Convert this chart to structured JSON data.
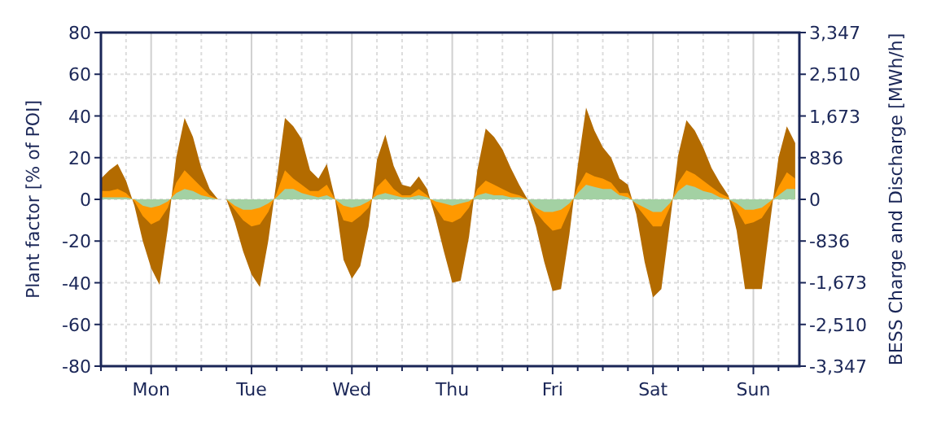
{
  "chart_data": {
    "type": "area",
    "ylabel": "Plant factor [% of POI]",
    "y2label": "BESS Charge and Discharge [MWh/h]",
    "categories": [
      null,
      null,
      null,
      null,
      null,
      null,
      "Mon",
      null,
      null,
      null,
      null,
      null,
      null,
      null,
      null,
      null,
      null,
      null,
      "Tue",
      null,
      null,
      null,
      null,
      null,
      null,
      null,
      null,
      null,
      null,
      null,
      "Wed",
      null,
      null,
      null,
      null,
      null,
      null,
      null,
      null,
      null,
      null,
      null,
      "Thu",
      null,
      null,
      null,
      null,
      null,
      null,
      null,
      null,
      null,
      null,
      null,
      "Fri",
      null,
      null,
      null,
      null,
      null,
      null,
      null,
      null,
      null,
      null,
      null,
      "Sat",
      null,
      null,
      null,
      null,
      null,
      null,
      null,
      null,
      null,
      null,
      null,
      "Sun",
      null,
      null,
      null,
      null,
      null
    ],
    "ylim": [
      -80,
      80
    ],
    "yticks": [
      -80,
      -60,
      -40,
      -20,
      0,
      20,
      40,
      60,
      80
    ],
    "y2lim": [
      -3347,
      3347
    ],
    "y2ticks": [
      {
        "value": -3347,
        "label": "-3,347"
      },
      {
        "value": -2510,
        "label": "-2,510"
      },
      {
        "value": -1673,
        "label": "-1,673"
      },
      {
        "value": -836,
        "label": "-836"
      },
      0,
      836,
      {
        "value": 1673,
        "label": "1,673"
      },
      {
        "value": 2510,
        "label": "2,510"
      },
      {
        "value": 3347,
        "label": "3,347"
      }
    ],
    "grid": true,
    "series": [
      {
        "color": "#b36b00",
        "values": [
          10,
          14,
          17,
          9,
          -3,
          -20,
          -33,
          -41,
          -14,
          20,
          39,
          30,
          15,
          5,
          0,
          0,
          -11,
          -25,
          -36,
          -42,
          -20,
          9,
          39,
          35,
          29,
          14,
          10,
          17,
          0,
          -29,
          -38,
          -32,
          -13,
          19,
          31,
          16,
          7,
          6,
          11,
          5,
          -9,
          -25,
          -40,
          -39,
          -18,
          14,
          34,
          30,
          24,
          15,
          7,
          0,
          -13,
          -30,
          -44,
          -43,
          -17,
          16,
          44,
          33,
          25,
          20,
          10,
          7,
          -7,
          -30,
          -47,
          -43,
          -12,
          21,
          38,
          33,
          25,
          15,
          8,
          2,
          -15,
          -43,
          -43,
          -43,
          -11,
          20,
          35,
          27
        ]
      },
      {
        "color": "#ff9900",
        "values": [
          4,
          4,
          5,
          3,
          -1,
          -8,
          -12,
          -10,
          -4,
          8,
          14,
          10,
          6,
          2,
          0,
          0,
          -5,
          -10,
          -13,
          -12,
          -6,
          3,
          14,
          10,
          7,
          4,
          4,
          7,
          0,
          -10,
          -11,
          -8,
          -4,
          6,
          10,
          5,
          2,
          2,
          5,
          2,
          -4,
          -10,
          -11,
          -9,
          -4,
          5,
          9,
          7,
          5,
          3,
          2,
          0,
          -6,
          -11,
          -15,
          -14,
          -5,
          6,
          13,
          11,
          10,
          8,
          3,
          3,
          -3,
          -8,
          -13,
          -13,
          -4,
          8,
          14,
          12,
          9,
          6,
          3,
          1,
          -5,
          -12,
          -11,
          -9,
          -3,
          6,
          13,
          10
        ]
      },
      {
        "color": "#a3d1a3",
        "values": [
          1,
          1,
          1,
          1,
          0,
          -3,
          -4,
          -3,
          -1,
          3,
          5,
          4,
          2,
          1,
          0,
          0,
          -3,
          -5,
          -5,
          -4,
          -2,
          1,
          5,
          5,
          3,
          2,
          1,
          2,
          0,
          -3,
          -4,
          -3,
          -1,
          2,
          3,
          2,
          1,
          1,
          2,
          1,
          -1,
          -2,
          -3,
          -2,
          -1,
          2,
          3,
          2,
          2,
          1,
          1,
          0,
          -4,
          -6,
          -6,
          -5,
          -2,
          3,
          7,
          6,
          5,
          5,
          2,
          1,
          -2,
          -4,
          -6,
          -6,
          -2,
          4,
          7,
          6,
          4,
          3,
          1,
          0,
          -2,
          -5,
          -5,
          -4,
          -1,
          2,
          5,
          5
        ]
      }
    ]
  }
}
